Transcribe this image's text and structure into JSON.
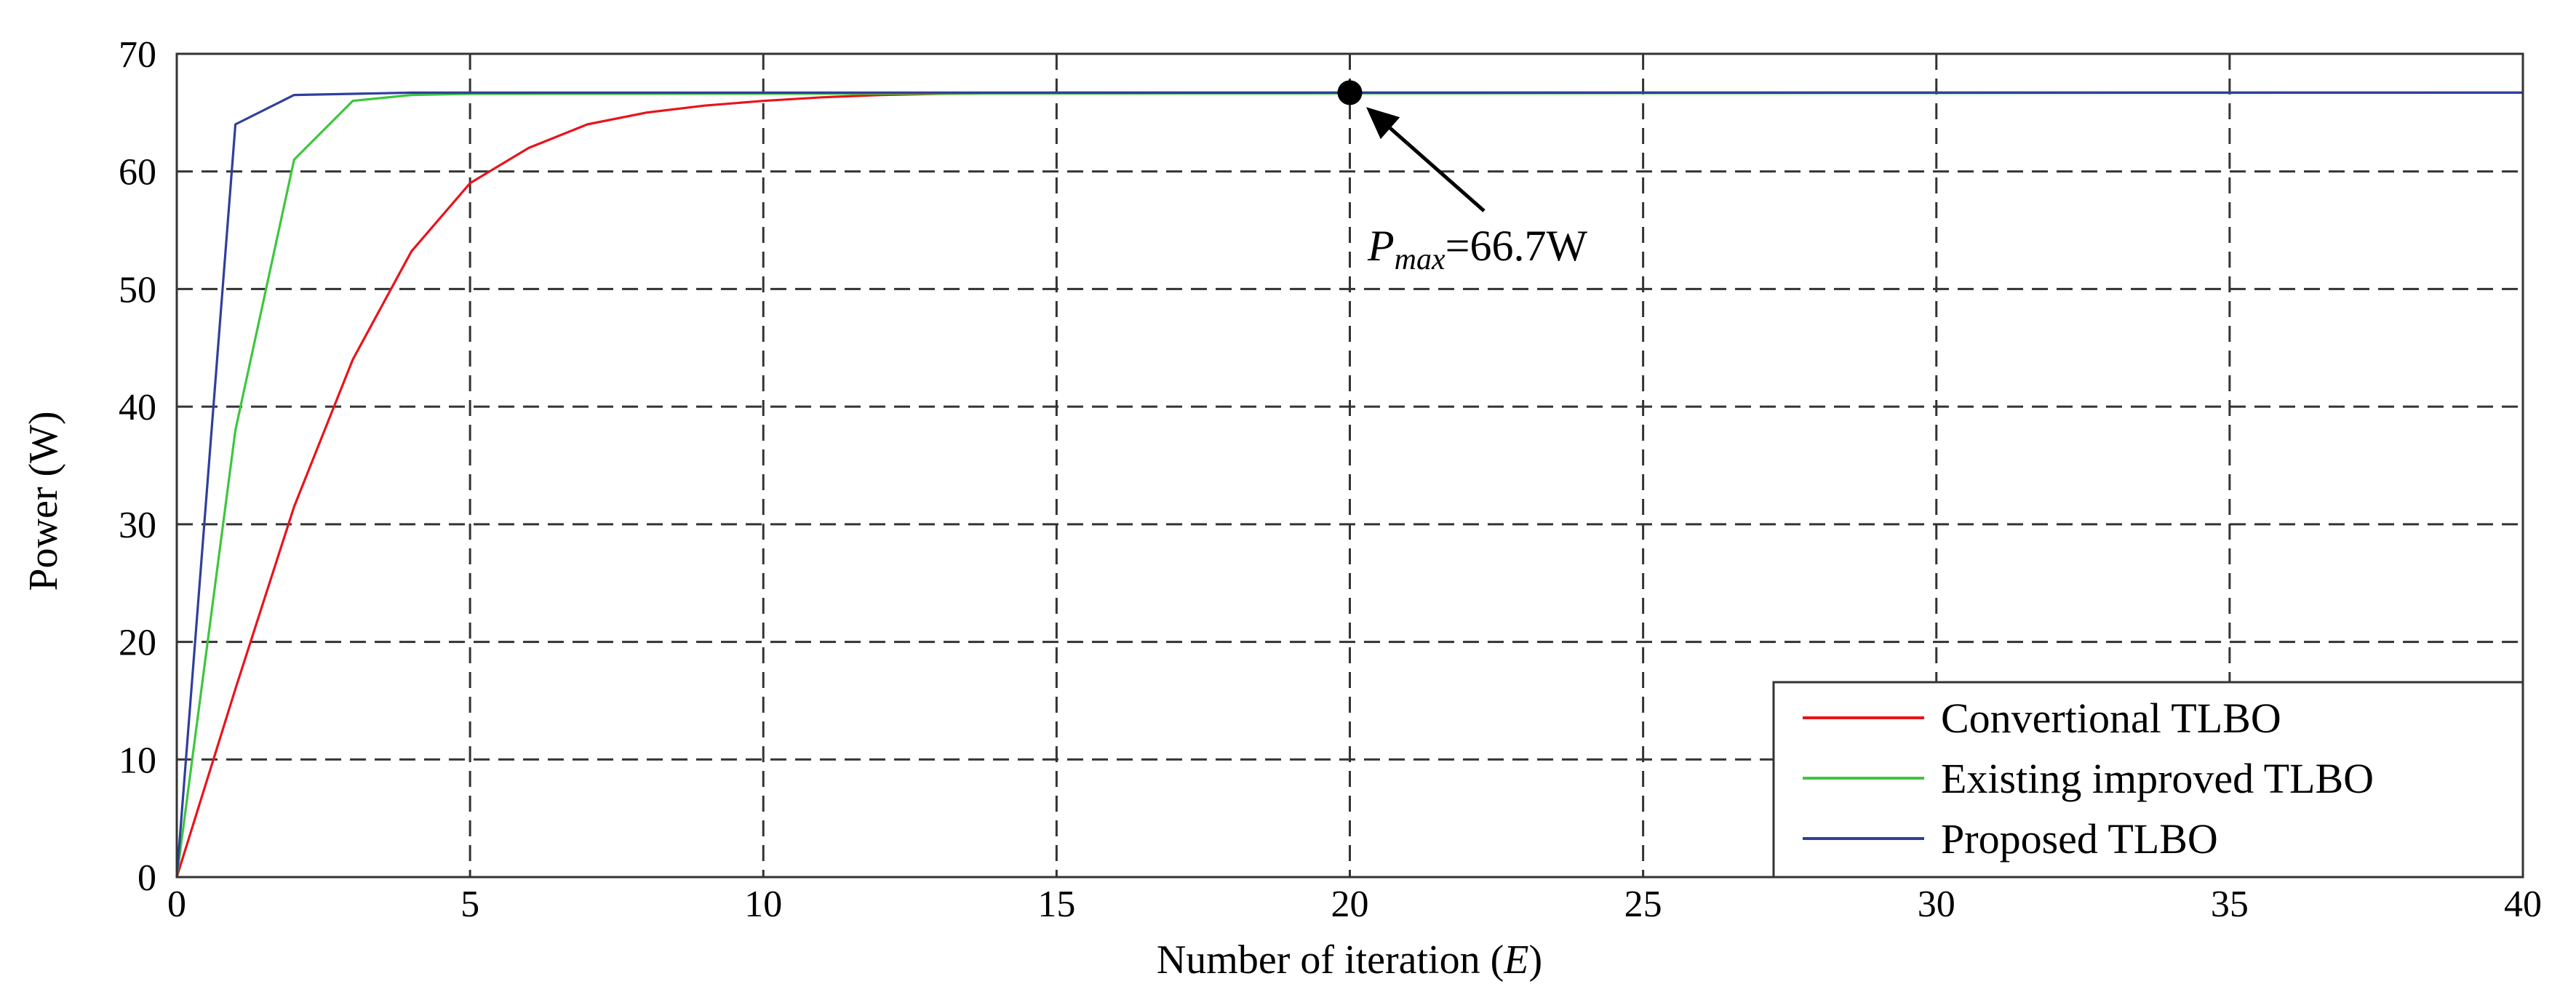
{
  "chart_data": {
    "type": "line",
    "title": "",
    "xlabel_prefix": "Number of iteration (",
    "xlabel_var": "E",
    "xlabel_suffix": ")",
    "ylabel": "Power (W)",
    "xlim": [
      0,
      40
    ],
    "ylim": [
      0,
      70
    ],
    "xticks": [
      0,
      5,
      10,
      15,
      20,
      25,
      30,
      35,
      40
    ],
    "yticks": [
      0,
      10,
      20,
      30,
      40,
      50,
      60,
      70
    ],
    "grid": true,
    "legend_position": "bottom-right",
    "series": [
      {
        "name": "Convertional TLBO",
        "color": "#e8141c",
        "x": [
          0,
          1,
          2,
          3,
          4,
          5,
          6,
          7,
          8,
          9,
          10,
          11,
          12,
          13,
          14,
          15,
          40
        ],
        "y": [
          0,
          16,
          31.5,
          44,
          53.2,
          59,
          62,
          64,
          65,
          65.6,
          66,
          66.3,
          66.5,
          66.6,
          66.65,
          66.7,
          66.7
        ]
      },
      {
        "name": "Existing improved TLBO",
        "color": "#3ec63e",
        "x": [
          0,
          1,
          2,
          3,
          4,
          5,
          40
        ],
        "y": [
          0,
          38,
          61,
          66,
          66.5,
          66.6,
          66.7
        ]
      },
      {
        "name": "Proposed TLBO",
        "color": "#2f3f9e",
        "x": [
          0,
          1,
          2,
          3,
          4,
          40
        ],
        "y": [
          0,
          64,
          66.5,
          66.6,
          66.7,
          66.7
        ]
      }
    ],
    "annotation": {
      "point": [
        20,
        66.7
      ],
      "label_symbol": "P",
      "label_subscript": "max",
      "label_value": "=66.7W"
    }
  }
}
